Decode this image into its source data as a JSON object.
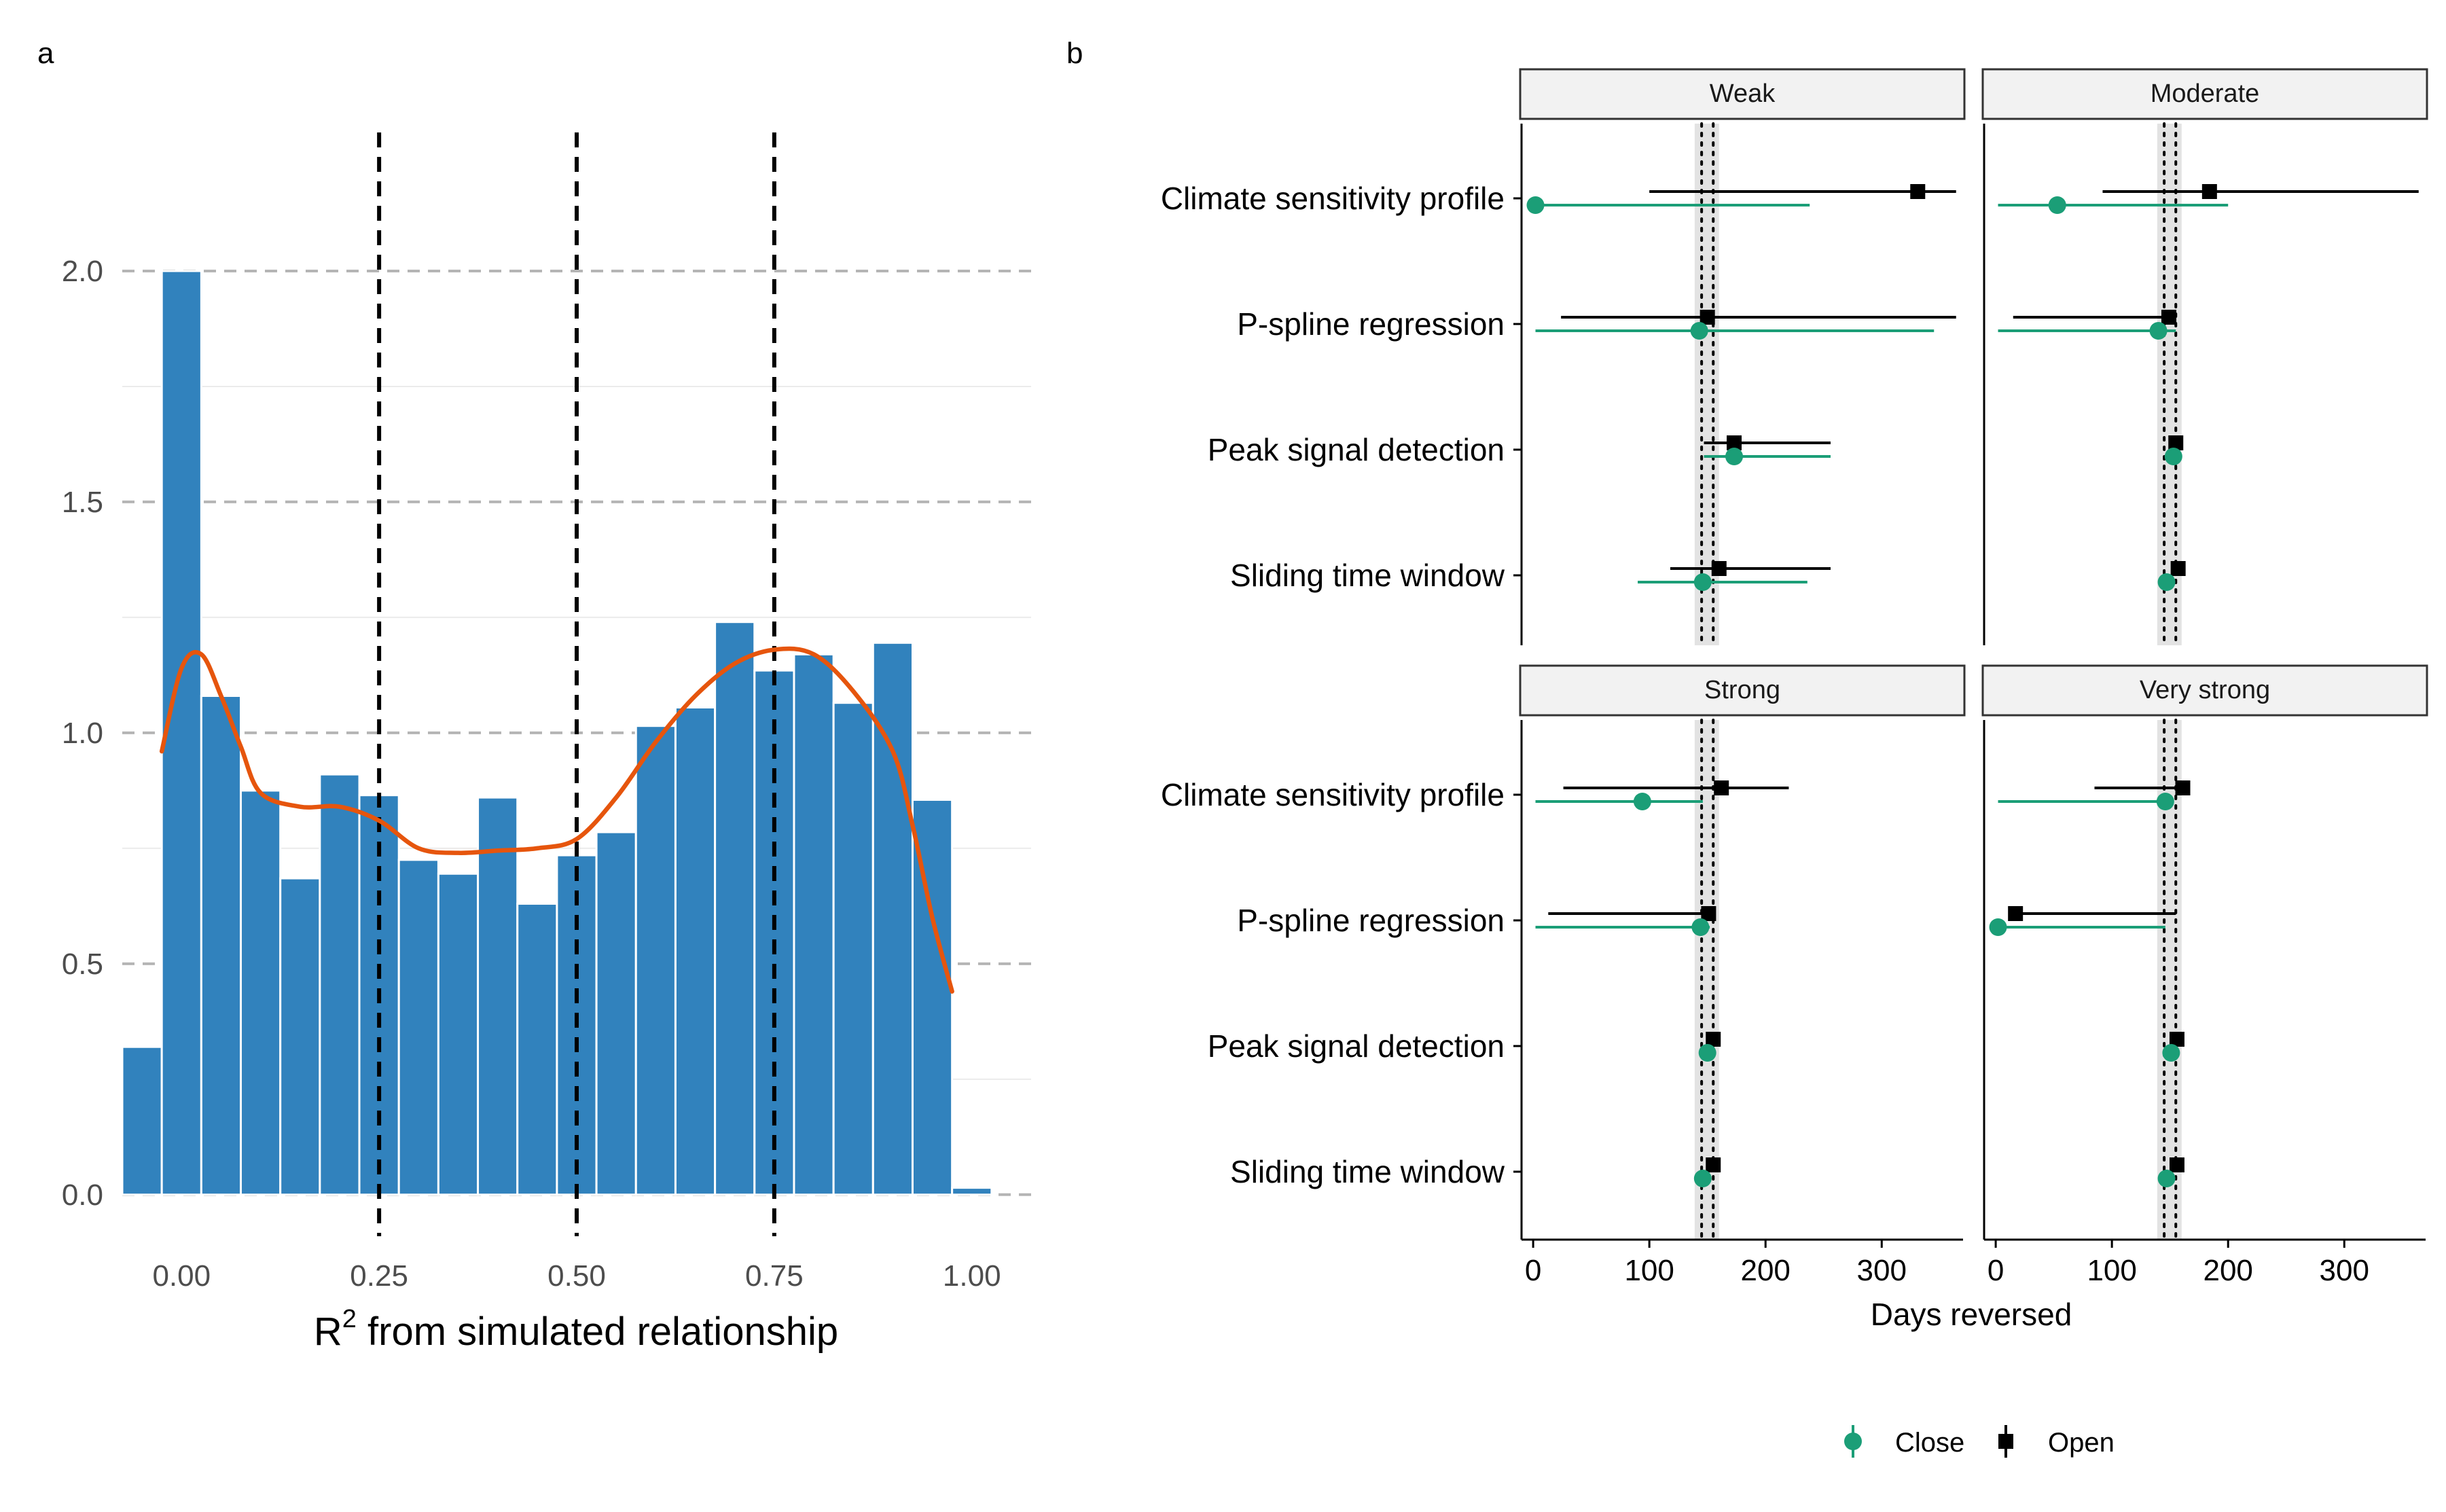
{
  "chart_data": [
    {
      "panel_label": "a",
      "type": "bar",
      "subtype": "histogram-with-density",
      "title": "",
      "xlabel_main": "R",
      "xlabel_sup": "2",
      "xlabel_rest": " from simulated relationship",
      "ylabel": "",
      "xlim": [
        -0.075,
        1.075
      ],
      "ylim": [
        -0.09,
        2.3
      ],
      "bin_width": 0.05,
      "bin_centers": [
        -0.05,
        0.0,
        0.05,
        0.1,
        0.15,
        0.2,
        0.25,
        0.3,
        0.35,
        0.4,
        0.45,
        0.5,
        0.55,
        0.6,
        0.65,
        0.7,
        0.75,
        0.8,
        0.85,
        0.9,
        0.95,
        1.0
      ],
      "values": [
        0.32,
        2.0,
        1.08,
        0.875,
        0.685,
        0.91,
        0.865,
        0.725,
        0.695,
        0.86,
        0.63,
        0.735,
        0.785,
        1.015,
        1.055,
        1.24,
        1.135,
        1.17,
        1.065,
        1.195,
        0.855,
        0.015
      ],
      "bar_color": "#3182BD",
      "density_color": "#E6550D",
      "density_x": [
        -0.025,
        0.0,
        0.025,
        0.05,
        0.075,
        0.1,
        0.15,
        0.2,
        0.25,
        0.3,
        0.35,
        0.4,
        0.45,
        0.5,
        0.55,
        0.6,
        0.65,
        0.7,
        0.75,
        0.8,
        0.85,
        0.9,
        0.925,
        0.95,
        0.975
      ],
      "density_y": [
        0.96,
        1.14,
        1.17,
        1.08,
        0.97,
        0.87,
        0.84,
        0.84,
        0.81,
        0.75,
        0.74,
        0.745,
        0.75,
        0.77,
        0.86,
        0.98,
        1.08,
        1.15,
        1.18,
        1.17,
        1.09,
        0.96,
        0.8,
        0.6,
        0.44
      ],
      "vlines": [
        0.25,
        0.5,
        0.75
      ],
      "yticks": [
        0.0,
        0.5,
        1.0,
        1.5,
        2.0
      ],
      "ytick_labels": [
        "0.0",
        "0.5",
        "1.0",
        "1.5",
        "2.0"
      ],
      "xticks": [
        0.0,
        0.25,
        0.5,
        0.75,
        1.0
      ],
      "xtick_labels": [
        "0.00",
        "0.25",
        "0.50",
        "0.75",
        "1.00"
      ]
    },
    {
      "panel_label": "b",
      "type": "scatter",
      "subtype": "faceted-point-range",
      "title": "",
      "xlabel": "Days reversed",
      "xlim": [
        -10,
        370
      ],
      "xticks": [
        0,
        100,
        200,
        300
      ],
      "xtick_labels": [
        "0",
        "100",
        "200",
        "300"
      ],
      "reference_band": [
        139,
        160
      ],
      "reference_lines": [
        145,
        155
      ],
      "methods": [
        "Climate sensitivity profile",
        "P-spline regression",
        "Peak signal detection",
        "Sliding time window"
      ],
      "series": [
        {
          "name": "Close",
          "color": "#1B9E77",
          "shape": "circle"
        },
        {
          "name": "Open",
          "color": "#000000",
          "shape": "square"
        }
      ],
      "facets": [
        {
          "name": "Weak",
          "rows": [
            {
              "method": "Climate sensitivity profile",
              "close": {
                "point": 2,
                "low": 0,
                "high": 238
              },
              "open": {
                "point": 331,
                "low": 100,
                "high": 364
              }
            },
            {
              "method": "P-spline regression",
              "close": {
                "point": 143,
                "low": 2,
                "high": 345
              },
              "open": {
                "point": 150,
                "low": 24,
                "high": 364
              }
            },
            {
              "method": "Peak signal detection",
              "close": {
                "point": 173,
                "low": 147,
                "high": 256
              },
              "open": {
                "point": 173,
                "low": 147,
                "high": 256
              }
            },
            {
              "method": "Sliding time window",
              "close": {
                "point": 146,
                "low": 90,
                "high": 236
              },
              "open": {
                "point": 160,
                "low": 118,
                "high": 256
              }
            }
          ]
        },
        {
          "name": "Moderate",
          "rows": [
            {
              "method": "Climate sensitivity profile",
              "close": {
                "point": 53,
                "low": 2,
                "high": 200
              },
              "open": {
                "point": 184,
                "low": 92,
                "high": 364
              }
            },
            {
              "method": "P-spline regression",
              "close": {
                "point": 140,
                "low": 2,
                "high": 155
              },
              "open": {
                "point": 149,
                "low": 15,
                "high": 155
              }
            },
            {
              "method": "Peak signal detection",
              "close": {
                "point": 153,
                "low": 149,
                "high": 157
              },
              "open": {
                "point": 155,
                "low": 150,
                "high": 158
              }
            },
            {
              "method": "Sliding time window",
              "close": {
                "point": 147,
                "low": 147,
                "high": 147
              },
              "open": {
                "point": 157,
                "low": 157,
                "high": 157
              }
            }
          ]
        },
        {
          "name": "Strong",
          "rows": [
            {
              "method": "Climate sensitivity profile",
              "close": {
                "point": 94,
                "low": 2,
                "high": 146
              },
              "open": {
                "point": 162,
                "low": 26,
                "high": 220
              }
            },
            {
              "method": "P-spline regression",
              "close": {
                "point": 144,
                "low": 2,
                "high": 152
              },
              "open": {
                "point": 151,
                "low": 13,
                "high": 152
              }
            },
            {
              "method": "Peak signal detection",
              "close": {
                "point": 150,
                "low": 150,
                "high": 150
              },
              "open": {
                "point": 155,
                "low": 155,
                "high": 155
              }
            },
            {
              "method": "Sliding time window",
              "close": {
                "point": 146,
                "low": 146,
                "high": 146
              },
              "open": {
                "point": 155,
                "low": 155,
                "high": 155
              }
            }
          ]
        },
        {
          "name": "Very strong",
          "rows": [
            {
              "method": "Climate sensitivity profile",
              "close": {
                "point": 146,
                "low": 2,
                "high": 146
              },
              "open": {
                "point": 161,
                "low": 85,
                "high": 161
              }
            },
            {
              "method": "P-spline regression",
              "close": {
                "point": 2,
                "low": 2,
                "high": 146
              },
              "open": {
                "point": 17,
                "low": 17,
                "high": 155
              }
            },
            {
              "method": "Peak signal detection",
              "close": {
                "point": 151,
                "low": 151,
                "high": 151
              },
              "open": {
                "point": 156,
                "low": 156,
                "high": 156
              }
            },
            {
              "method": "Sliding time window",
              "close": {
                "point": 147,
                "low": 147,
                "high": 147
              },
              "open": {
                "point": 156,
                "low": 156,
                "high": 156
              }
            }
          ]
        }
      ],
      "legend": {
        "position": "bottom",
        "entries": [
          "Close",
          "Open"
        ]
      }
    }
  ]
}
